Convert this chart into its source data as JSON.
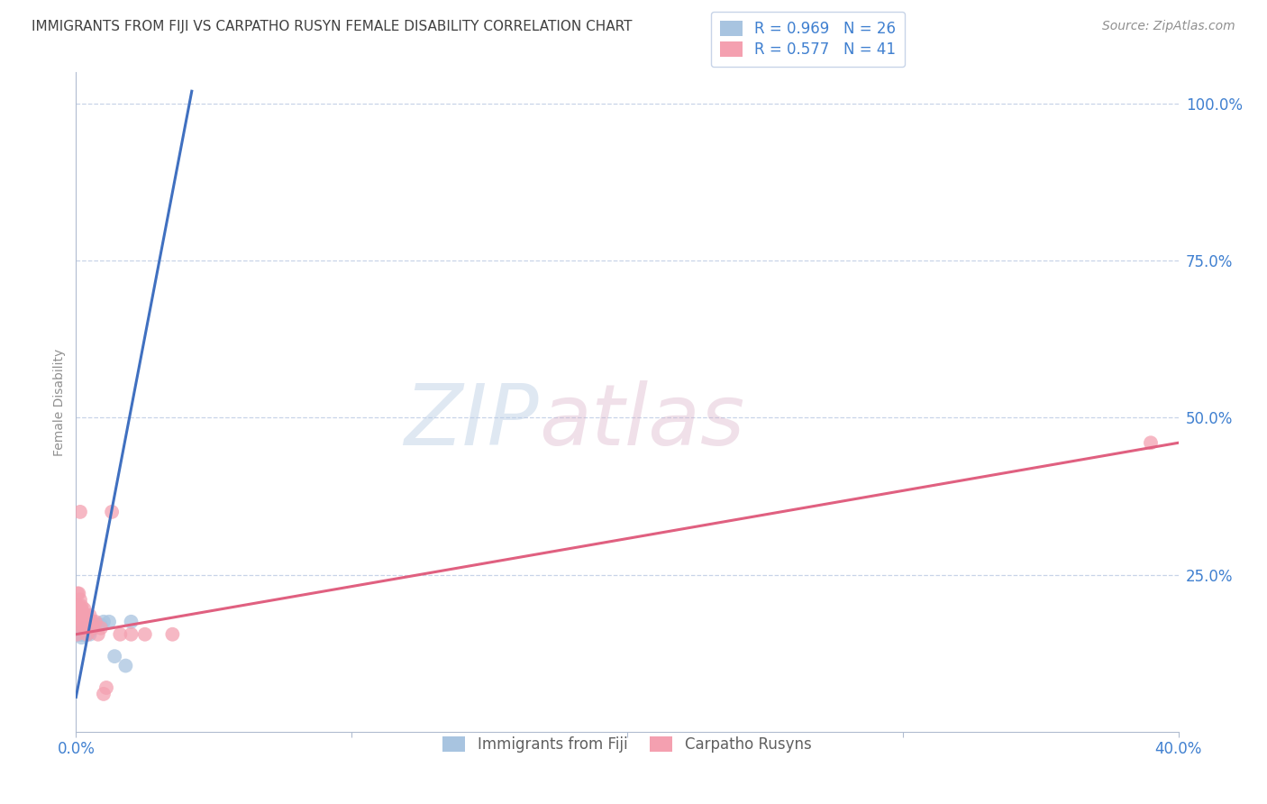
{
  "title": "IMMIGRANTS FROM FIJI VS CARPATHO RUSYN FEMALE DISABILITY CORRELATION CHART",
  "source": "Source: ZipAtlas.com",
  "ylabel": "Female Disability",
  "watermark_zip": "ZIP",
  "watermark_atlas": "atlas",
  "blue_label": "Immigrants from Fiji",
  "pink_label": "Carpatho Rusyns",
  "blue_R": 0.969,
  "blue_N": 26,
  "pink_R": 0.577,
  "pink_N": 41,
  "blue_color": "#a8c4e0",
  "pink_color": "#f4a0b0",
  "blue_line_color": "#4070c0",
  "pink_line_color": "#e06080",
  "bg_color": "#ffffff",
  "grid_color": "#c8d4e8",
  "axis_color": "#b0bcd0",
  "title_color": "#404040",
  "legend_text_color": "#4080d0",
  "tick_color": "#4080d0",
  "xlim": [
    0.0,
    0.4
  ],
  "ylim": [
    0.0,
    1.05
  ],
  "blue_scatter_x": [
    0.0005,
    0.001,
    0.001,
    0.0015,
    0.002,
    0.002,
    0.002,
    0.0025,
    0.003,
    0.003,
    0.003,
    0.003,
    0.004,
    0.004,
    0.004,
    0.005,
    0.005,
    0.006,
    0.007,
    0.008,
    0.009,
    0.01,
    0.012,
    0.014,
    0.018,
    0.02
  ],
  "blue_scatter_y": [
    0.155,
    0.155,
    0.16,
    0.155,
    0.155,
    0.15,
    0.16,
    0.155,
    0.155,
    0.155,
    0.16,
    0.165,
    0.155,
    0.16,
    0.165,
    0.155,
    0.16,
    0.165,
    0.17,
    0.17,
    0.17,
    0.175,
    0.175,
    0.12,
    0.105,
    0.175
  ],
  "pink_scatter_x": [
    0.0003,
    0.0005,
    0.0005,
    0.001,
    0.001,
    0.001,
    0.001,
    0.0015,
    0.0015,
    0.002,
    0.002,
    0.002,
    0.002,
    0.002,
    0.0025,
    0.003,
    0.003,
    0.003,
    0.003,
    0.003,
    0.003,
    0.004,
    0.004,
    0.004,
    0.004,
    0.005,
    0.005,
    0.006,
    0.006,
    0.007,
    0.008,
    0.009,
    0.01,
    0.011,
    0.013,
    0.016,
    0.02,
    0.025,
    0.035,
    0.39,
    0.0015
  ],
  "pink_scatter_y": [
    0.155,
    0.2,
    0.22,
    0.22,
    0.2,
    0.18,
    0.17,
    0.21,
    0.195,
    0.195,
    0.185,
    0.175,
    0.2,
    0.185,
    0.175,
    0.195,
    0.185,
    0.175,
    0.165,
    0.17,
    0.18,
    0.185,
    0.175,
    0.165,
    0.155,
    0.185,
    0.175,
    0.175,
    0.165,
    0.175,
    0.155,
    0.165,
    0.06,
    0.07,
    0.35,
    0.155,
    0.155,
    0.155,
    0.155,
    0.46,
    0.35
  ],
  "blue_trendline_x": [
    0.0,
    0.042
  ],
  "blue_trendline_y": [
    0.055,
    1.02
  ],
  "pink_trendline_x": [
    0.0,
    0.4
  ],
  "pink_trendline_y": [
    0.155,
    0.46
  ],
  "yticks": [
    0.25,
    0.5,
    0.75,
    1.0
  ],
  "ytick_labels": [
    "25.0%",
    "50.0%",
    "75.0%",
    "100.0%"
  ],
  "source_fontsize": 10,
  "title_fontsize": 11
}
